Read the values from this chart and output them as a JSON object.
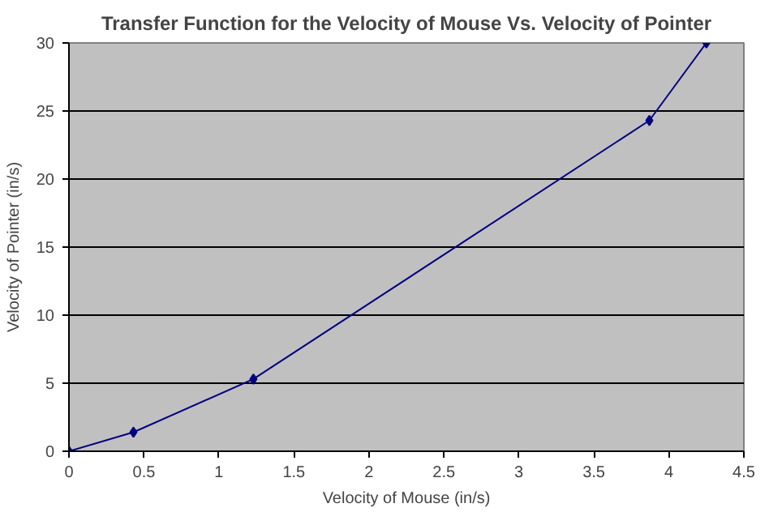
{
  "chart_data": {
    "type": "line",
    "title": "Transfer Function for the Velocity of Mouse Vs. Velocity of Pointer",
    "xlabel": "Velocity of Mouse (in/s)",
    "ylabel": "Velocity of Pointer (in/s)",
    "x": [
      0,
      0.43,
      1.23,
      3.87,
      4.25
    ],
    "series": [
      {
        "color": "#000080",
        "values": [
          0,
          1.4,
          5.3,
          24.3,
          30
        ]
      }
    ],
    "xlim": [
      0,
      4.5
    ],
    "ylim": [
      0,
      30
    ],
    "xticks": [
      0,
      0.5,
      1,
      1.5,
      2,
      2.5,
      3,
      3.5,
      4,
      4.5
    ],
    "yticks": [
      0,
      5,
      10,
      15,
      20,
      25,
      30
    ],
    "grid": "y",
    "marker": "diamond",
    "line_style": "solid"
  }
}
